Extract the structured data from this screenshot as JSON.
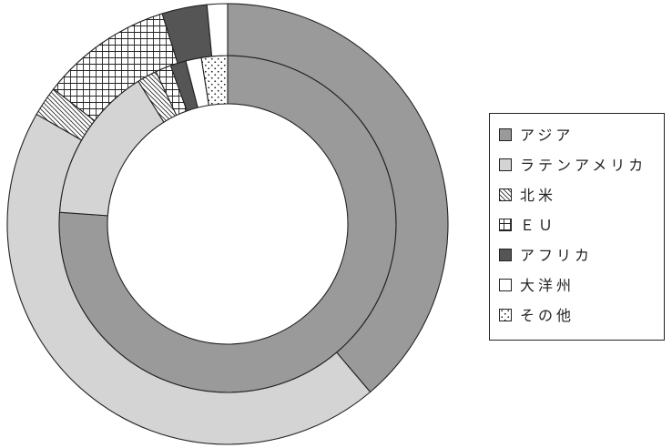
{
  "chart_data": {
    "type": "pie",
    "donut": true,
    "categories": [
      "アジア",
      "ラテンアメリカ",
      "北米",
      "ＥＵ",
      "アフリカ",
      "大洋州",
      "その他"
    ],
    "series": [
      {
        "ring": "inner",
        "values": [
          76.1,
          15.0,
          1.9,
          1.5,
          1.5,
          1.5,
          2.5
        ]
      },
      {
        "ring": "outer",
        "values": [
          38.8,
          44.5,
          2.2,
          9.7,
          3.3,
          1.5,
          0
        ]
      }
    ],
    "fills": [
      "#9a9a9a",
      "#d4d4d4",
      "hatch-diagonal",
      "grid-crosshatch",
      "#555555",
      "#ffffff",
      "dots"
    ],
    "stroke_color": "#222222",
    "legend": "right"
  }
}
